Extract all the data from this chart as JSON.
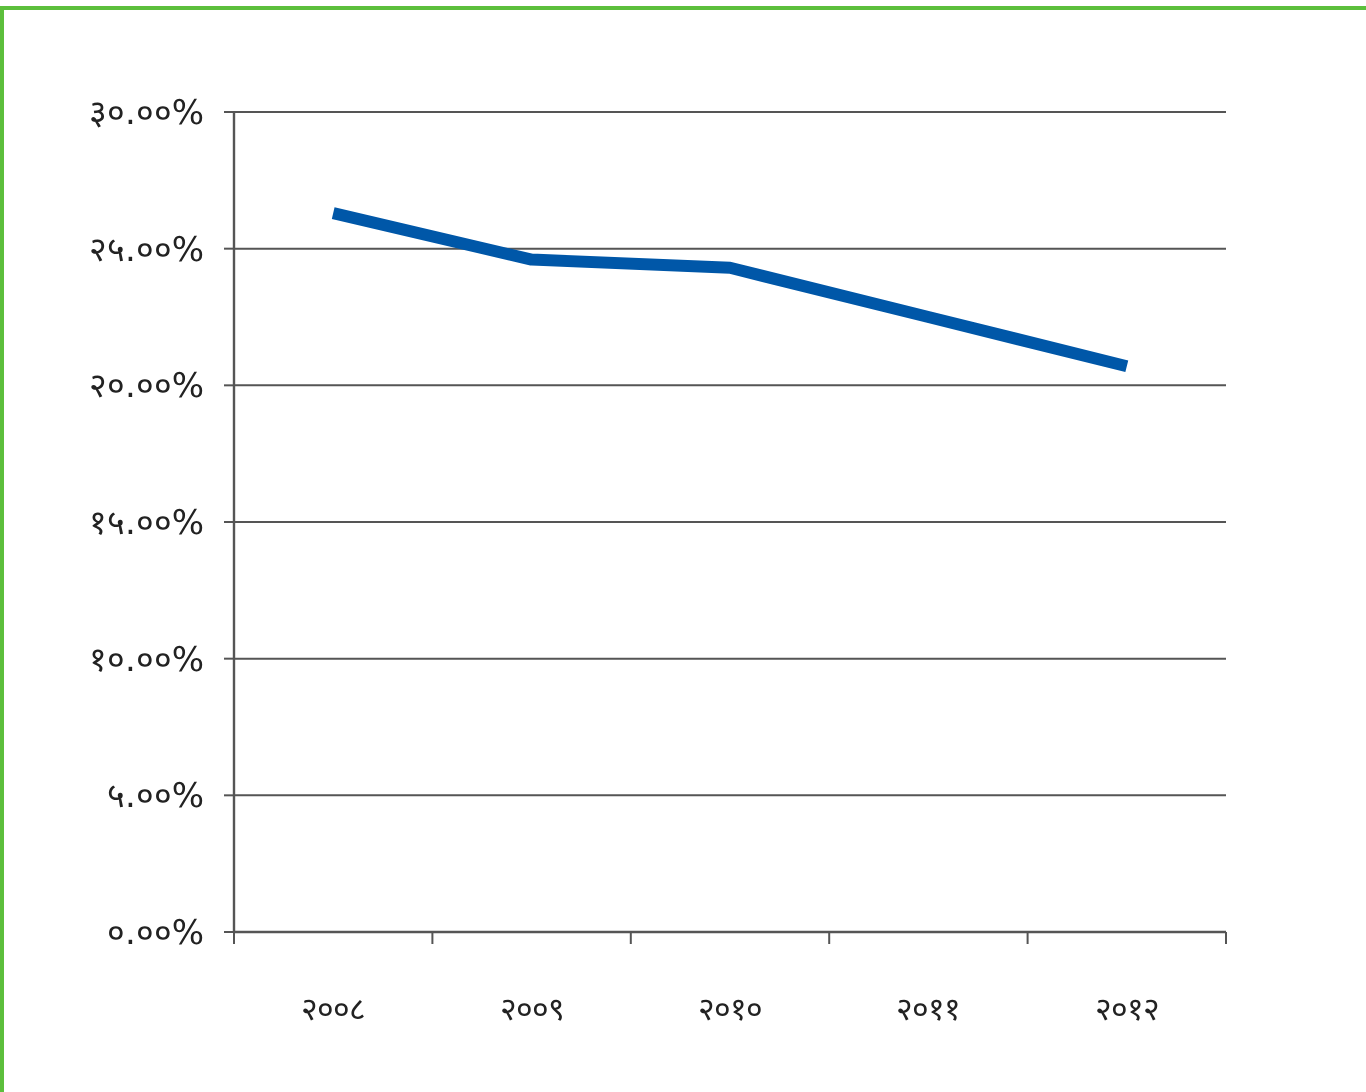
{
  "chart_data": {
    "type": "line",
    "categories": [
      "२००८",
      "२००९",
      "२०१०",
      "२०११",
      "२०१२"
    ],
    "series": [
      {
        "color": "#0057a8",
        "values": [
          26.3,
          24.6,
          24.3,
          22.5,
          20.7
        ]
      }
    ],
    "ylim": [
      0,
      30
    ],
    "yticks": [
      {
        "value": 0,
        "label": "०.००%"
      },
      {
        "value": 5,
        "label": "५.००%"
      },
      {
        "value": 10,
        "label": "१०.००%"
      },
      {
        "value": 15,
        "label": "१५.००%"
      },
      {
        "value": 20,
        "label": "२०.००%"
      },
      {
        "value": 25,
        "label": "२५.००%"
      },
      {
        "value": 30,
        "label": "३०.००%"
      }
    ],
    "grid": "y",
    "marker": "none",
    "line_style": "solid"
  }
}
